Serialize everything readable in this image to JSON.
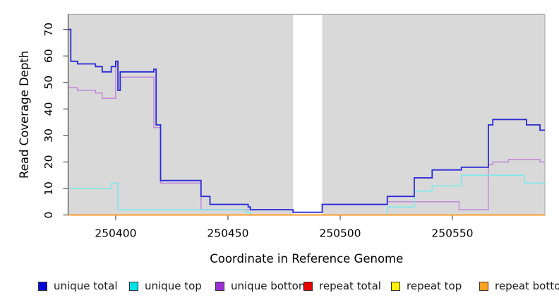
{
  "chart_data": {
    "type": "line",
    "line_style": "step-post",
    "title": "",
    "xlabel": "Coordinate in Reference Genome",
    "ylabel": "Read Coverage Depth",
    "xlim": [
      250378.8,
      250591.2
    ],
    "ylim": [
      0,
      75.7
    ],
    "x_ticks": [
      250400,
      250450,
      250500,
      250550
    ],
    "y_ticks": [
      0,
      10,
      20,
      30,
      40,
      50,
      60,
      70
    ],
    "grid": false,
    "legend_position": "bottom",
    "plot_bg_color": "#d9d9d9",
    "frame_color": "#a3a3a3",
    "masked_region": {
      "x_start": 250479,
      "x_end": 250492,
      "color": "#ffffff"
    },
    "draw_order": [
      3,
      4,
      2,
      1,
      5,
      0
    ],
    "series": [
      {
        "label": "unique total",
        "color": "#2a2ad6",
        "legend_color": "#0000dd",
        "points": [
          [
            250379,
            70
          ],
          [
            250380,
            58
          ],
          [
            250383,
            57
          ],
          [
            250391,
            56
          ],
          [
            250394,
            54
          ],
          [
            250398,
            56
          ],
          [
            250400,
            58
          ],
          [
            250401,
            47
          ],
          [
            250402,
            54
          ],
          [
            250417,
            55
          ],
          [
            250418,
            34
          ],
          [
            250420,
            13
          ],
          [
            250438,
            7
          ],
          [
            250442,
            4
          ],
          [
            250459,
            3
          ],
          [
            250460,
            2
          ],
          [
            250479,
            1
          ],
          [
            250492,
            4
          ],
          [
            250521,
            7
          ],
          [
            250533,
            14
          ],
          [
            250541,
            17
          ],
          [
            250554,
            18
          ],
          [
            250566,
            34
          ],
          [
            250568,
            36
          ],
          [
            250583,
            34
          ],
          [
            250589,
            32
          ]
        ]
      },
      {
        "label": "unique top",
        "color": "#7ce9e9",
        "legend_color": "#00e0e6",
        "points": [
          [
            250379,
            10
          ],
          [
            250398,
            12
          ],
          [
            250401,
            2
          ],
          [
            250458,
            1
          ],
          [
            250460,
            0
          ],
          [
            250521,
            3
          ],
          [
            250533,
            9
          ],
          [
            250541,
            11
          ],
          [
            250554,
            15
          ],
          [
            250582,
            12
          ]
        ]
      },
      {
        "label": "unique bottom",
        "color": "#c289da",
        "legend_color": "#9b30d0",
        "points": [
          [
            250379,
            48
          ],
          [
            250383,
            47
          ],
          [
            250391,
            46
          ],
          [
            250394,
            44
          ],
          [
            250400,
            57
          ],
          [
            250401,
            47
          ],
          [
            250402,
            52
          ],
          [
            250417,
            33
          ],
          [
            250420,
            12
          ],
          [
            250438,
            2
          ],
          [
            250479,
            1
          ],
          [
            250492,
            4
          ],
          [
            250521,
            5
          ],
          [
            250553,
            2
          ],
          [
            250566,
            19
          ],
          [
            250568,
            20
          ],
          [
            250575,
            21
          ],
          [
            250589,
            20
          ]
        ]
      },
      {
        "label": "repeat total",
        "color": "#cc0000",
        "legend_color": "#e60000",
        "points": [
          [
            250379,
            0
          ]
        ]
      },
      {
        "label": "repeat top",
        "color": "#ffff00",
        "legend_color": "#fff200",
        "points": [
          [
            250379,
            0
          ]
        ]
      },
      {
        "label": "repeat bottom",
        "color": "#ff9d26",
        "legend_color": "#ffa01e",
        "points": [
          [
            250379,
            0
          ]
        ]
      }
    ]
  }
}
